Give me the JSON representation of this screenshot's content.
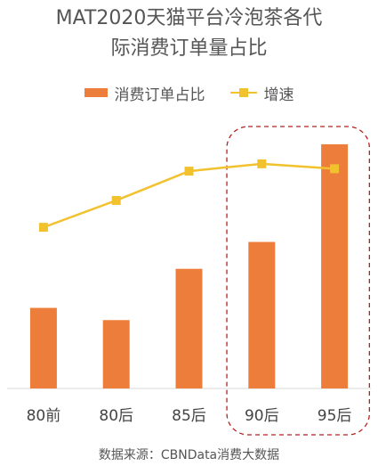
{
  "chart_data": {
    "type": "bar",
    "title_line1": "MAT2020天猫平台冷泡茶各代",
    "title_line2": "际消费订单量占比",
    "categories": [
      "80前",
      "80后",
      "85后",
      "90后",
      "95后"
    ],
    "series": [
      {
        "name": "消费订单占比",
        "type": "bar",
        "color": "#ED7D3A",
        "values": [
          0.33,
          0.28,
          0.49,
          0.6,
          1.0
        ]
      },
      {
        "name": "增速",
        "type": "line",
        "color": "#F2C12E",
        "values": [
          0.66,
          0.77,
          0.89,
          0.92,
          0.9
        ]
      }
    ],
    "ylim": [
      0,
      1.08
    ],
    "grid": false,
    "legend_position": "top",
    "highlight_categories": [
      "90后",
      "95后"
    ],
    "highlight_color": "#B22222",
    "source": "数据来源：CBNData消费大数据"
  }
}
